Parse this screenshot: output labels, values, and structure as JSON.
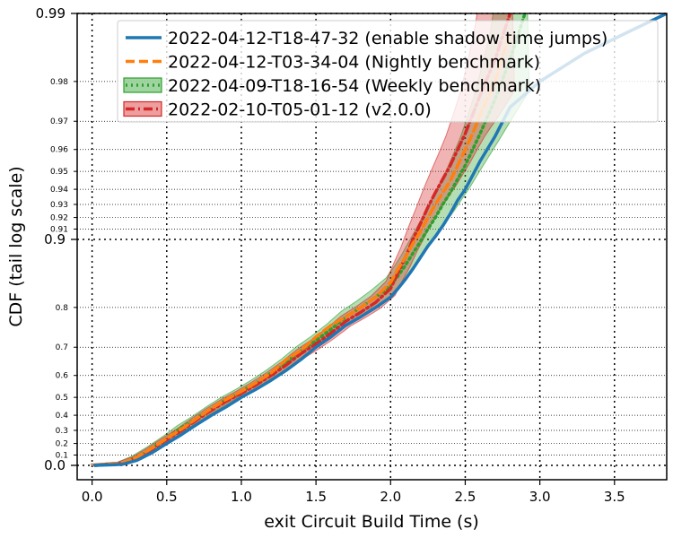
{
  "chart_data": {
    "type": "line",
    "xlabel": "exit Circuit Build Time (s)",
    "ylabel": "CDF (tail log scale)",
    "xlim": [
      -0.1,
      3.85
    ],
    "x_ticks": [
      "0.0",
      "0.5",
      "1.0",
      "1.5",
      "2.0",
      "2.5",
      "3.0",
      "3.5"
    ],
    "x_tick_values": [
      0.0,
      0.5,
      1.0,
      1.5,
      2.0,
      2.5,
      3.0,
      3.5
    ],
    "y_scale": "tail-log (1 - CDF)",
    "y_major_ticks": [
      "0.0",
      "0.9",
      "0.99"
    ],
    "y_major_values": [
      0.0,
      0.9,
      0.99
    ],
    "y_minor_ticks": [
      "0.1",
      "0.2",
      "0.3",
      "0.4",
      "0.5",
      "0.6",
      "0.7",
      "0.8",
      "0.91",
      "0.92",
      "0.93",
      "0.94",
      "0.95",
      "0.96",
      "0.97",
      "0.98"
    ],
    "y_minor_values": [
      0.1,
      0.2,
      0.3,
      0.4,
      0.5,
      0.6,
      0.7,
      0.8,
      0.91,
      0.92,
      0.93,
      0.94,
      0.95,
      0.96,
      0.97,
      0.98
    ],
    "grid": true,
    "legend_position": "top-right",
    "series": [
      {
        "name": "2022-04-12-T18-47-32 (enable shadow time jumps)",
        "color": "#1f77b4",
        "style": "solid",
        "band": false,
        "x": [
          0.02,
          0.2,
          0.3,
          0.4,
          0.5,
          0.6,
          0.7,
          0.8,
          0.9,
          1.0,
          1.1,
          1.2,
          1.3,
          1.4,
          1.5,
          1.6,
          1.7,
          1.8,
          1.9,
          2.0,
          2.05,
          2.1,
          2.15,
          2.2,
          2.25,
          2.3,
          2.35,
          2.4,
          2.45,
          2.5,
          2.55,
          2.6,
          2.7,
          2.8,
          3.0,
          3.3,
          3.6,
          3.85
        ],
        "y": [
          0.0,
          0.01,
          0.05,
          0.12,
          0.2,
          0.27,
          0.34,
          0.4,
          0.45,
          0.5,
          0.54,
          0.58,
          0.62,
          0.66,
          0.7,
          0.73,
          0.76,
          0.78,
          0.8,
          0.82,
          0.835,
          0.85,
          0.865,
          0.88,
          0.893,
          0.903,
          0.913,
          0.923,
          0.933,
          0.94,
          0.948,
          0.955,
          0.965,
          0.974,
          0.98,
          0.985,
          0.988,
          0.99
        ]
      },
      {
        "name": "2022-04-12-T03-34-04 (Nightly benchmark)",
        "color": "#ff7f0e",
        "style": "dashed",
        "band": false,
        "x": [
          0.02,
          0.2,
          0.3,
          0.4,
          0.5,
          0.6,
          0.7,
          0.8,
          0.9,
          1.0,
          1.1,
          1.2,
          1.3,
          1.4,
          1.5,
          1.6,
          1.7,
          1.8,
          1.9,
          2.0,
          2.05,
          2.1,
          2.15,
          2.2,
          2.25,
          2.3,
          2.35,
          2.4,
          2.45,
          2.5,
          2.55,
          2.6,
          2.7,
          2.8
        ],
        "y": [
          0.0,
          0.02,
          0.08,
          0.16,
          0.24,
          0.31,
          0.38,
          0.44,
          0.49,
          0.53,
          0.57,
          0.61,
          0.66,
          0.69,
          0.73,
          0.76,
          0.78,
          0.8,
          0.82,
          0.845,
          0.865,
          0.88,
          0.896,
          0.908,
          0.92,
          0.93,
          0.938,
          0.945,
          0.953,
          0.96,
          0.966,
          0.972,
          0.98,
          0.988
        ]
      },
      {
        "name": "2022-04-09-T18-16-54 (Weekly benchmark)",
        "color": "#2ca02c",
        "style": "dotted",
        "band": true,
        "x": [
          0.02,
          0.2,
          0.3,
          0.4,
          0.5,
          0.6,
          0.7,
          0.8,
          0.9,
          1.0,
          1.1,
          1.2,
          1.3,
          1.4,
          1.5,
          1.6,
          1.7,
          1.8,
          1.9,
          2.0,
          2.05,
          2.1,
          2.15,
          2.2,
          2.25,
          2.3,
          2.35,
          2.4,
          2.45,
          2.5,
          2.55,
          2.6,
          2.7,
          2.8,
          2.9
        ],
        "y": [
          0.0,
          0.02,
          0.08,
          0.16,
          0.24,
          0.32,
          0.38,
          0.44,
          0.49,
          0.53,
          0.57,
          0.61,
          0.65,
          0.69,
          0.72,
          0.75,
          0.78,
          0.8,
          0.82,
          0.84,
          0.855,
          0.87,
          0.885,
          0.898,
          0.91,
          0.92,
          0.93,
          0.938,
          0.946,
          0.953,
          0.96,
          0.966,
          0.976,
          0.984,
          0.99
        ]
      },
      {
        "name": "2022-02-10-T05-01-12 (v2.0.0)",
        "color": "#d62728",
        "style": "dashdot",
        "band": true,
        "x": [
          0.02,
          0.2,
          0.3,
          0.4,
          0.5,
          0.6,
          0.7,
          0.8,
          0.9,
          1.0,
          1.1,
          1.2,
          1.3,
          1.4,
          1.5,
          1.6,
          1.7,
          1.8,
          1.9,
          2.0,
          2.05,
          2.1,
          2.15,
          2.2,
          2.25,
          2.3,
          2.35,
          2.4,
          2.45,
          2.5,
          2.55,
          2.6,
          2.7,
          2.8
        ],
        "y": [
          0.0,
          0.02,
          0.07,
          0.15,
          0.23,
          0.3,
          0.37,
          0.43,
          0.48,
          0.52,
          0.56,
          0.6,
          0.64,
          0.68,
          0.71,
          0.74,
          0.77,
          0.79,
          0.81,
          0.835,
          0.86,
          0.88,
          0.9,
          0.915,
          0.928,
          0.938,
          0.946,
          0.953,
          0.96,
          0.966,
          0.972,
          0.977,
          0.984,
          0.99
        ]
      }
    ]
  }
}
